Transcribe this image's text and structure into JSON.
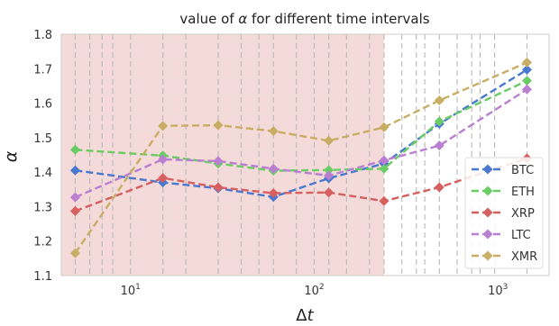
{
  "chart_data": {
    "type": "line",
    "title": "value of α for different time intervals",
    "title_prefix": "value of ",
    "title_symbol": "α",
    "title_suffix": " for different time intervals",
    "xlabel": "Δt",
    "xlabel_symbol": "Δ",
    "xlabel_var": "t",
    "ylabel": "α",
    "x_scale": "log",
    "xlim": [
      4.2,
      1900
    ],
    "ylim": [
      1.1,
      1.8
    ],
    "y_ticks": [
      1.1,
      1.2,
      1.3,
      1.4,
      1.5,
      1.6,
      1.7,
      1.8
    ],
    "y_tick_labels": [
      "1.1",
      "1.2",
      "1.3",
      "1.4",
      "1.5",
      "1.6",
      "1.7",
      "1.8"
    ],
    "x_ticks": [
      {
        "value": 10,
        "base": "10",
        "exp": "1"
      },
      {
        "value": 100,
        "base": "10",
        "exp": "2"
      },
      {
        "value": 1000,
        "base": "10",
        "exp": "3"
      }
    ],
    "shaded_region": {
      "x": [
        4.2,
        240
      ],
      "color": "#f5dada"
    },
    "vertical_lines": [
      5,
      6,
      7,
      8,
      10,
      15,
      20,
      30,
      40,
      50,
      60,
      80,
      100,
      120,
      150,
      200,
      240,
      300,
      360,
      400,
      480,
      600,
      720,
      800,
      960,
      1440
    ],
    "grid": false,
    "legend_position": "lower right",
    "x": [
      5,
      15,
      30,
      60,
      120,
      240,
      480,
      1440
    ],
    "series": [
      {
        "name": "BTC",
        "color": "#4878d0",
        "values": [
          1.405,
          1.37,
          1.353,
          1.328,
          1.382,
          1.425,
          1.54,
          1.697
        ]
      },
      {
        "name": "ETH",
        "color": "#6acc64",
        "values": [
          1.465,
          1.448,
          1.425,
          1.404,
          1.406,
          1.41,
          1.547,
          1.665
        ]
      },
      {
        "name": "XRP",
        "color": "#d65f5f",
        "values": [
          1.287,
          1.383,
          1.356,
          1.339,
          1.341,
          1.316,
          1.356,
          1.44
        ]
      },
      {
        "name": "LTC",
        "color": "#b97fd0",
        "values": [
          1.327,
          1.437,
          1.432,
          1.41,
          1.39,
          1.434,
          1.477,
          1.64
        ]
      },
      {
        "name": "XMR",
        "color": "#c8ad64",
        "values": [
          1.165,
          1.534,
          1.536,
          1.519,
          1.491,
          1.53,
          1.608,
          1.718
        ]
      }
    ]
  }
}
